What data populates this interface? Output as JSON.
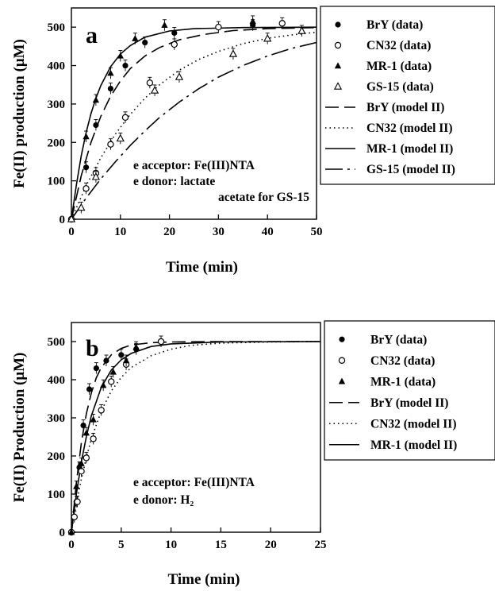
{
  "chart_data": [
    {
      "type": "scatter",
      "panel_label": "a",
      "xlabel": "Time (min)",
      "ylabel": "Fe(II) production (μM)",
      "xlim": [
        0,
        50
      ],
      "ylim": [
        0,
        550
      ],
      "x_ticks": [
        0,
        10,
        20,
        30,
        40,
        50
      ],
      "y_ticks": [
        0,
        100,
        200,
        300,
        400,
        500
      ],
      "grid": false,
      "legend_position": "right, outside plot",
      "annotation_lines": [
        "e acceptor: Fe(III)NTA",
        "e donor: lactate",
        "acetate for GS-15"
      ],
      "series": [
        {
          "name": "BrY (data)",
          "kind": "data",
          "marker": "filled-circle",
          "points": [
            [
              0,
              0
            ],
            [
              3,
              135
            ],
            [
              5,
              245
            ],
            [
              8,
              340
            ],
            [
              11,
              400
            ],
            [
              15,
              460
            ],
            [
              21,
              485
            ],
            [
              37,
              505
            ]
          ]
        },
        {
          "name": "CN32 (data)",
          "kind": "data",
          "marker": "open-circle",
          "points": [
            [
              0,
              0
            ],
            [
              3,
              80
            ],
            [
              5,
              120
            ],
            [
              8,
              195
            ],
            [
              11,
              265
            ],
            [
              16,
              355
            ],
            [
              21,
              455
            ],
            [
              30,
              500
            ],
            [
              43,
              510
            ]
          ]
        },
        {
          "name": "MR-1 (data)",
          "kind": "data",
          "marker": "filled-triangle",
          "points": [
            [
              0,
              0
            ],
            [
              3,
              215
            ],
            [
              5,
              310
            ],
            [
              8,
              380
            ],
            [
              10,
              425
            ],
            [
              13,
              470
            ],
            [
              19,
              505
            ],
            [
              37,
              515
            ]
          ]
        },
        {
          "name": "GS-15 (data)",
          "kind": "data",
          "marker": "open-triangle",
          "points": [
            [
              0,
              0
            ],
            [
              2,
              30
            ],
            [
              5,
              110
            ],
            [
              10,
              210
            ],
            [
              17,
              335
            ],
            [
              22,
              370
            ],
            [
              33,
              430
            ],
            [
              40,
              470
            ],
            [
              47,
              490
            ]
          ]
        },
        {
          "name": "BrY (model II)",
          "kind": "model",
          "line_style": "long-dash",
          "points": [
            [
              0,
              0
            ],
            [
              2,
              113
            ],
            [
              4,
              200
            ],
            [
              6,
              268
            ],
            [
              8,
              320
            ],
            [
              10,
              360
            ],
            [
              12,
              392
            ],
            [
              15,
              425
            ],
            [
              18,
              447
            ],
            [
              22,
              467
            ],
            [
              27,
              481
            ],
            [
              33,
              491
            ],
            [
              40,
              496
            ],
            [
              50,
              499
            ]
          ]
        },
        {
          "name": "CN32 (model II)",
          "kind": "model",
          "line_style": "dotted",
          "points": [
            [
              0,
              0
            ],
            [
              3,
              87
            ],
            [
              6,
              160
            ],
            [
              9,
              222
            ],
            [
              12,
              273
            ],
            [
              15,
              315
            ],
            [
              18,
              350
            ],
            [
              22,
              388
            ],
            [
              26,
              416
            ],
            [
              30,
              437
            ],
            [
              35,
              457
            ],
            [
              40,
              471
            ],
            [
              45,
              480
            ],
            [
              50,
              487
            ]
          ]
        },
        {
          "name": "MR-1 (model II)",
          "kind": "model",
          "line_style": "solid",
          "points": [
            [
              0,
              0
            ],
            [
              1,
              88
            ],
            [
              2,
              165
            ],
            [
              3,
              225
            ],
            [
              4,
              275
            ],
            [
              5,
              315
            ],
            [
              6,
              348
            ],
            [
              8,
              397
            ],
            [
              10,
              430
            ],
            [
              12,
              452
            ],
            [
              15,
              474
            ],
            [
              20,
              490
            ],
            [
              25,
              496
            ],
            [
              35,
              499
            ],
            [
              50,
              500
            ]
          ]
        },
        {
          "name": "GS-15 (model II)",
          "kind": "model",
          "line_style": "dash-dot",
          "points": [
            [
              0,
              0
            ],
            [
              3,
              55
            ],
            [
              6,
              105
            ],
            [
              9,
              150
            ],
            [
              12,
              192
            ],
            [
              15,
              230
            ],
            [
              18,
              265
            ],
            [
              22,
              305
            ],
            [
              26,
              340
            ],
            [
              30,
              370
            ],
            [
              35,
              400
            ],
            [
              40,
              425
            ],
            [
              45,
              445
            ],
            [
              50,
              460
            ]
          ]
        }
      ]
    },
    {
      "type": "scatter",
      "panel_label": "b",
      "xlabel": "Time (min)",
      "ylabel": "Fe(II) Production (μM)",
      "xlim": [
        0,
        25
      ],
      "ylim": [
        0,
        550
      ],
      "x_ticks": [
        0,
        5,
        10,
        15,
        20,
        25
      ],
      "y_ticks": [
        0,
        100,
        200,
        300,
        400,
        500
      ],
      "grid": false,
      "legend_position": "right, outside plot",
      "annotation_lines": [
        "e acceptor: Fe(III)NTA",
        "e donor: H₂"
      ],
      "series": [
        {
          "name": "BrY (data)",
          "kind": "data",
          "marker": "filled-circle",
          "points": [
            [
              0,
              0
            ],
            [
              0.5,
              80
            ],
            [
              0.8,
              170
            ],
            [
              1.2,
              280
            ],
            [
              1.8,
              375
            ],
            [
              2.5,
              430
            ],
            [
              3.5,
              450
            ],
            [
              5,
              465
            ],
            [
              6.5,
              480
            ]
          ]
        },
        {
          "name": "CN32 (data)",
          "kind": "data",
          "marker": "open-circle",
          "points": [
            [
              0,
              0
            ],
            [
              0.3,
              40
            ],
            [
              0.6,
              80
            ],
            [
              1,
              160
            ],
            [
              1.5,
              195
            ],
            [
              2.2,
              245
            ],
            [
              3,
              320
            ],
            [
              4,
              395
            ],
            [
              5.5,
              440
            ],
            [
              9,
              500
            ]
          ]
        },
        {
          "name": "MR-1 (data)",
          "kind": "data",
          "marker": "filled-triangle",
          "points": [
            [
              0,
              0
            ],
            [
              0.5,
              120
            ],
            [
              1,
              180
            ],
            [
              1.5,
              260
            ],
            [
              2.2,
              295
            ],
            [
              3.2,
              385
            ],
            [
              4.2,
              420
            ],
            [
              5.5,
              450
            ],
            [
              6.5,
              485
            ]
          ]
        },
        {
          "name": "BrY (model II)",
          "kind": "model",
          "line_style": "long-dash",
          "points": [
            [
              0,
              0
            ],
            [
              0.5,
              130
            ],
            [
              1,
              235
            ],
            [
              1.5,
              310
            ],
            [
              2,
              365
            ],
            [
              2.5,
              405
            ],
            [
              3,
              432
            ],
            [
              4,
              465
            ],
            [
              5,
              482
            ],
            [
              6,
              491
            ],
            [
              8,
              497
            ],
            [
              10,
              499
            ],
            [
              15,
              500
            ],
            [
              25,
              500
            ]
          ]
        },
        {
          "name": "CN32 (model II)",
          "kind": "model",
          "line_style": "dotted",
          "points": [
            [
              0,
              0
            ],
            [
              0.5,
              75
            ],
            [
              1,
              140
            ],
            [
              1.5,
              195
            ],
            [
              2,
              245
            ],
            [
              3,
              318
            ],
            [
              4,
              370
            ],
            [
              5,
              406
            ],
            [
              6,
              432
            ],
            [
              8,
              463
            ],
            [
              10,
              480
            ],
            [
              12,
              490
            ],
            [
              15,
              496
            ],
            [
              20,
              499
            ],
            [
              25,
              500
            ]
          ]
        },
        {
          "name": "MR-1 (model II)",
          "kind": "model",
          "line_style": "solid",
          "points": [
            [
              0,
              0
            ],
            [
              0.5,
              100
            ],
            [
              1,
              185
            ],
            [
              1.5,
              250
            ],
            [
              2,
              305
            ],
            [
              3,
              380
            ],
            [
              4,
              425
            ],
            [
              5,
              452
            ],
            [
              6,
              469
            ],
            [
              8,
              487
            ],
            [
              10,
              494
            ],
            [
              15,
              499
            ],
            [
              25,
              500
            ]
          ]
        }
      ]
    }
  ]
}
